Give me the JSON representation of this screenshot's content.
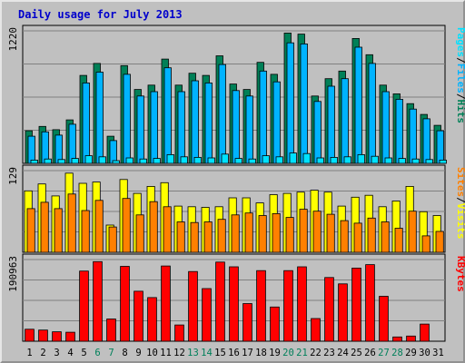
{
  "title": "Daily usage for July 2013",
  "colors": {
    "background": "#c0c0c0",
    "plot_background": "#c0c0c0",
    "pages": "#00e1ff",
    "hits": "#008057",
    "files": "#00b3ff",
    "sites": "#ff8000",
    "visits": "#ffff00",
    "kbytes": "#ff0000",
    "title": "#0000cc",
    "weekend_label": "#00805a",
    "grid": "#808080"
  },
  "chart_data": [
    {
      "type": "bar",
      "panel": "pages-files-hits",
      "ymax_label": "1220",
      "legend": [
        "Pages",
        "/",
        "Files",
        "/",
        "Hits"
      ],
      "legend_colors": [
        "#00e1ff",
        "#000000",
        "#00b3ff",
        "#000000",
        "#008057"
      ],
      "categories": [
        "1",
        "2",
        "3",
        "4",
        "5",
        "6",
        "7",
        "8",
        "9",
        "10",
        "11",
        "12",
        "13",
        "14",
        "15",
        "16",
        "17",
        "18",
        "19",
        "20",
        "21",
        "22",
        "23",
        "24",
        "25",
        "26",
        "27",
        "28",
        "29",
        "30",
        "31"
      ],
      "ylim": [
        0,
        1220
      ],
      "series": [
        {
          "name": "Hits",
          "values": [
            300,
            340,
            310,
            400,
            810,
            920,
            250,
            900,
            680,
            720,
            960,
            720,
            830,
            810,
            990,
            730,
            680,
            930,
            820,
            1200,
            1190,
            620,
            780,
            850,
            1150,
            1000,
            720,
            640,
            550,
            450,
            350
          ]
        },
        {
          "name": "Files",
          "values": [
            250,
            290,
            260,
            360,
            740,
            840,
            210,
            820,
            620,
            660,
            880,
            660,
            760,
            740,
            910,
            670,
            620,
            850,
            750,
            1110,
            1100,
            570,
            710,
            780,
            1070,
            920,
            660,
            590,
            500,
            410,
            300
          ]
        },
        {
          "name": "Pages",
          "values": [
            30,
            40,
            35,
            45,
            70,
            60,
            25,
            50,
            40,
            45,
            80,
            60,
            55,
            50,
            85,
            45,
            40,
            70,
            60,
            95,
            90,
            50,
            55,
            60,
            80,
            65,
            50,
            45,
            40,
            35,
            30
          ]
        }
      ]
    },
    {
      "type": "bar",
      "panel": "sites-visits",
      "ymax_label": "129",
      "legend": [
        "Sites",
        "/",
        "Visits"
      ],
      "legend_colors": [
        "#ff8000",
        "#000000",
        "#ffff00"
      ],
      "categories": [
        "1",
        "2",
        "3",
        "4",
        "5",
        "6",
        "7",
        "8",
        "9",
        "10",
        "11",
        "12",
        "13",
        "14",
        "15",
        "16",
        "17",
        "18",
        "19",
        "20",
        "21",
        "22",
        "23",
        "24",
        "25",
        "26",
        "27",
        "28",
        "29",
        "30",
        "31"
      ],
      "ylim": [
        0,
        129
      ],
      "series": [
        {
          "name": "Visits",
          "values": [
            97,
            108,
            89,
            125,
            109,
            111,
            43,
            115,
            93,
            104,
            110,
            73,
            72,
            71,
            72,
            86,
            86,
            78,
            91,
            93,
            95,
            98,
            95,
            73,
            87,
            90,
            72,
            81,
            104,
            64,
            58
          ]
        },
        {
          "name": "Sites",
          "values": [
            69,
            79,
            69,
            92,
            66,
            82,
            40,
            85,
            59,
            80,
            72,
            48,
            47,
            48,
            52,
            59,
            62,
            58,
            61,
            55,
            68,
            65,
            60,
            50,
            46,
            54,
            48,
            38,
            65,
            26,
            33
          ]
        }
      ]
    },
    {
      "type": "bar",
      "panel": "kbytes",
      "ymax_label": "190963",
      "legend": [
        "KBytes"
      ],
      "legend_colors": [
        "#ff0000"
      ],
      "categories": [
        "1",
        "2",
        "3",
        "4",
        "5",
        "6",
        "7",
        "8",
        "9",
        "10",
        "11",
        "12",
        "13",
        "14",
        "15",
        "16",
        "17",
        "18",
        "19",
        "20",
        "21",
        "22",
        "23",
        "24",
        "25",
        "26",
        "27",
        "28",
        "29",
        "30",
        "31"
      ],
      "ylim": [
        0,
        190963
      ],
      "series": [
        {
          "name": "KBytes",
          "values": [
            28000,
            26000,
            22000,
            21000,
            164000,
            186000,
            52000,
            175000,
            117000,
            102000,
            176000,
            38000,
            163000,
            123000,
            185000,
            174000,
            88000,
            165000,
            80000,
            165000,
            174000,
            53000,
            149000,
            134000,
            171000,
            179000,
            105000,
            10000,
            12000,
            40000,
            0
          ]
        }
      ]
    }
  ],
  "x_labels": [
    "1",
    "2",
    "3",
    "4",
    "5",
    "6",
    "7",
    "8",
    "9",
    "10",
    "11",
    "12",
    "13",
    "14",
    "15",
    "16",
    "17",
    "18",
    "19",
    "20",
    "21",
    "22",
    "23",
    "24",
    "25",
    "26",
    "27",
    "28",
    "29",
    "30",
    "31"
  ],
  "weekend_days": [
    "6",
    "7",
    "13",
    "14",
    "20",
    "21",
    "27",
    "28"
  ]
}
